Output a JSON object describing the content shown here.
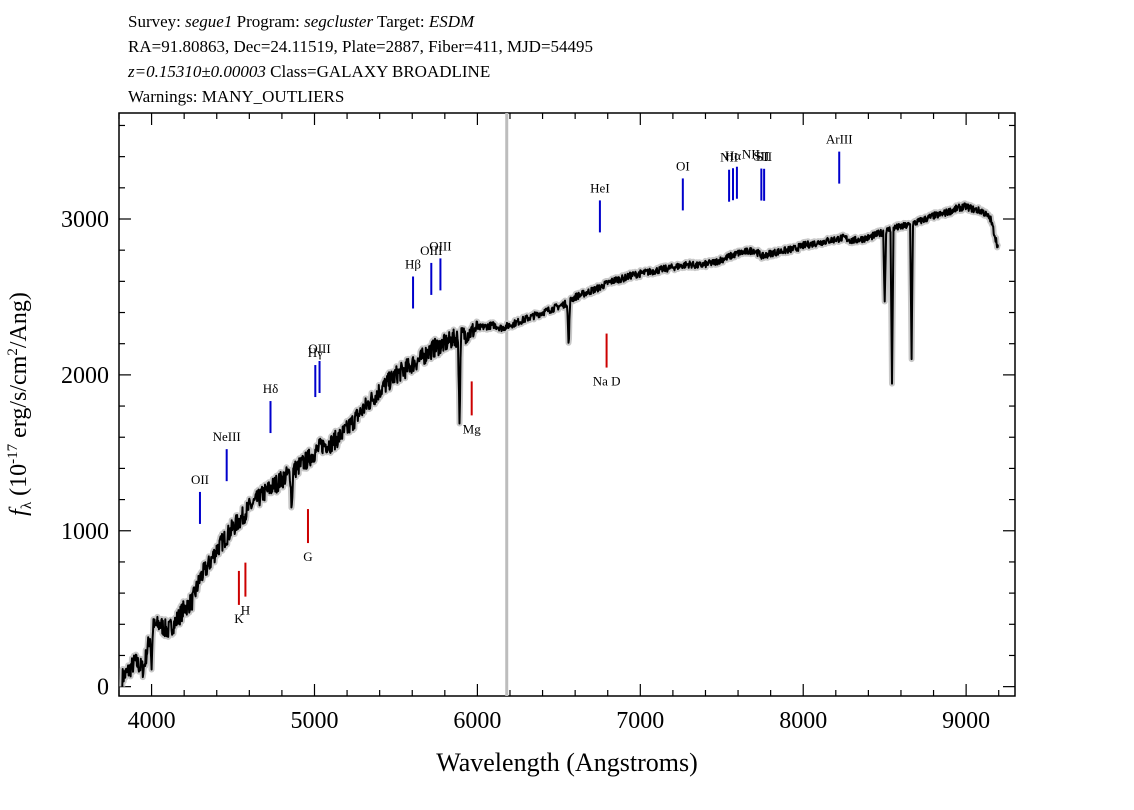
{
  "header": {
    "survey_label": "Survey:",
    "survey": "segue1",
    "program_label": "Program:",
    "program": "segcluster",
    "target_label": "Target:",
    "target": "ESDM",
    "line2": "RA=91.80863, Dec=24.11519, Plate=2887, Fiber=411, MJD=54495",
    "redshift": "z=0.15310±0.00003",
    "class_text": "Class=GALAXY BROADLINE",
    "warnings": "Warnings: MANY_OUTLIERS"
  },
  "chart_data": {
    "type": "line",
    "xlabel": "Wavelength (Angstroms)",
    "ylabel": "f_λ (10^-17 erg/s/cm^2/Ang)",
    "xlim": [
      3800,
      9300
    ],
    "ylim": [
      -60,
      3680
    ],
    "x_ticks": [
      4000,
      5000,
      6000,
      7000,
      8000,
      9000
    ],
    "y_ticks": [
      0,
      1000,
      2000,
      3000
    ],
    "grid": false,
    "vertical_marker_x": 6180,
    "series": [
      {
        "color": "#000000",
        "x": [
          3820,
          3850,
          3900,
          3950,
          4000,
          4050,
          4100,
          4150,
          4200,
          4250,
          4300,
          4350,
          4400,
          4450,
          4500,
          4550,
          4600,
          4650,
          4700,
          4750,
          4800,
          4850,
          4900,
          4950,
          5000,
          5050,
          5100,
          5150,
          5200,
          5250,
          5300,
          5350,
          5400,
          5450,
          5500,
          5550,
          5600,
          5650,
          5700,
          5750,
          5800,
          5850,
          5900,
          5950,
          6000,
          6050,
          6100,
          6150,
          6200,
          6250,
          6300,
          6350,
          6400,
          6450,
          6500,
          6550,
          6600,
          6650,
          6700,
          6750,
          6800,
          6850,
          6900,
          6950,
          7000,
          7050,
          7100,
          7150,
          7200,
          7250,
          7300,
          7350,
          7400,
          7450,
          7500,
          7550,
          7600,
          7650,
          7700,
          7750,
          7800,
          7850,
          7900,
          7950,
          8000,
          8050,
          8100,
          8150,
          8200,
          8250,
          8300,
          8350,
          8400,
          8450,
          8500,
          8550,
          8600,
          8650,
          8700,
          8750,
          8800,
          8850,
          8900,
          8950,
          9000,
          9050,
          9100,
          9150,
          9200
        ],
        "y": [
          60,
          90,
          160,
          110,
          380,
          400,
          360,
          420,
          500,
          550,
          700,
          780,
          880,
          950,
          1020,
          1080,
          1150,
          1200,
          1250,
          1290,
          1330,
          1370,
          1410,
          1450,
          1500,
          1550,
          1560,
          1600,
          1650,
          1720,
          1780,
          1840,
          1900,
          1950,
          2000,
          2030,
          2070,
          2100,
          2150,
          2180,
          2200,
          2230,
          2250,
          2270,
          2300,
          2310,
          2320,
          2300,
          2320,
          2340,
          2360,
          2380,
          2400,
          2420,
          2440,
          2460,
          2500,
          2520,
          2540,
          2560,
          2590,
          2610,
          2620,
          2640,
          2650,
          2660,
          2670,
          2680,
          2690,
          2700,
          2710,
          2700,
          2710,
          2720,
          2740,
          2760,
          2780,
          2790,
          2800,
          2760,
          2780,
          2790,
          2800,
          2810,
          2830,
          2840,
          2850,
          2860,
          2870,
          2880,
          2860,
          2870,
          2880,
          2900,
          2920,
          2940,
          2950,
          2960,
          2980,
          3000,
          3020,
          3030,
          3050,
          3070,
          3080,
          3060,
          3050,
          3000,
          2800
        ]
      }
    ],
    "absorption_features": [
      {
        "x": 4000,
        "depth": 250
      },
      {
        "x": 4860,
        "depth": 250
      },
      {
        "x": 5890,
        "depth": 550
      },
      {
        "x": 6560,
        "depth": 300
      },
      {
        "x": 8500,
        "depth": 450
      },
      {
        "x": 8545,
        "depth": 1000
      },
      {
        "x": 8665,
        "depth": 850
      }
    ],
    "emission_lines": [
      {
        "label": "OII",
        "x": 4297
      },
      {
        "label": "NeIII",
        "x": 4461
      },
      {
        "label": "Hδ",
        "x": 4730
      },
      {
        "label": "Hγ",
        "x": 5005
      },
      {
        "label": "OIII",
        "x": 5031
      },
      {
        "label": "Hβ",
        "x": 5605
      },
      {
        "label": "OIII",
        "x": 5717
      },
      {
        "label": "OIII",
        "x": 5773
      },
      {
        "label": "HeI",
        "x": 6752
      },
      {
        "label": "OI",
        "x": 7261
      },
      {
        "label": "NII",
        "x": 7545
      },
      {
        "label": "Hα",
        "x": 7569
      },
      {
        "label": "NII",
        "x": 7593
      },
      {
        "label": "SII",
        "x": 7743
      },
      {
        "label": "SII",
        "x": 7760
      },
      {
        "label": "ArIII",
        "x": 8221
      }
    ],
    "absorption_lines": [
      {
        "label": "K",
        "x": 4536
      },
      {
        "label": "H",
        "x": 4576
      },
      {
        "label": "G",
        "x": 4960
      },
      {
        "label": "Mg",
        "x": 5965
      },
      {
        "label": "Na D",
        "x": 6793
      }
    ]
  }
}
